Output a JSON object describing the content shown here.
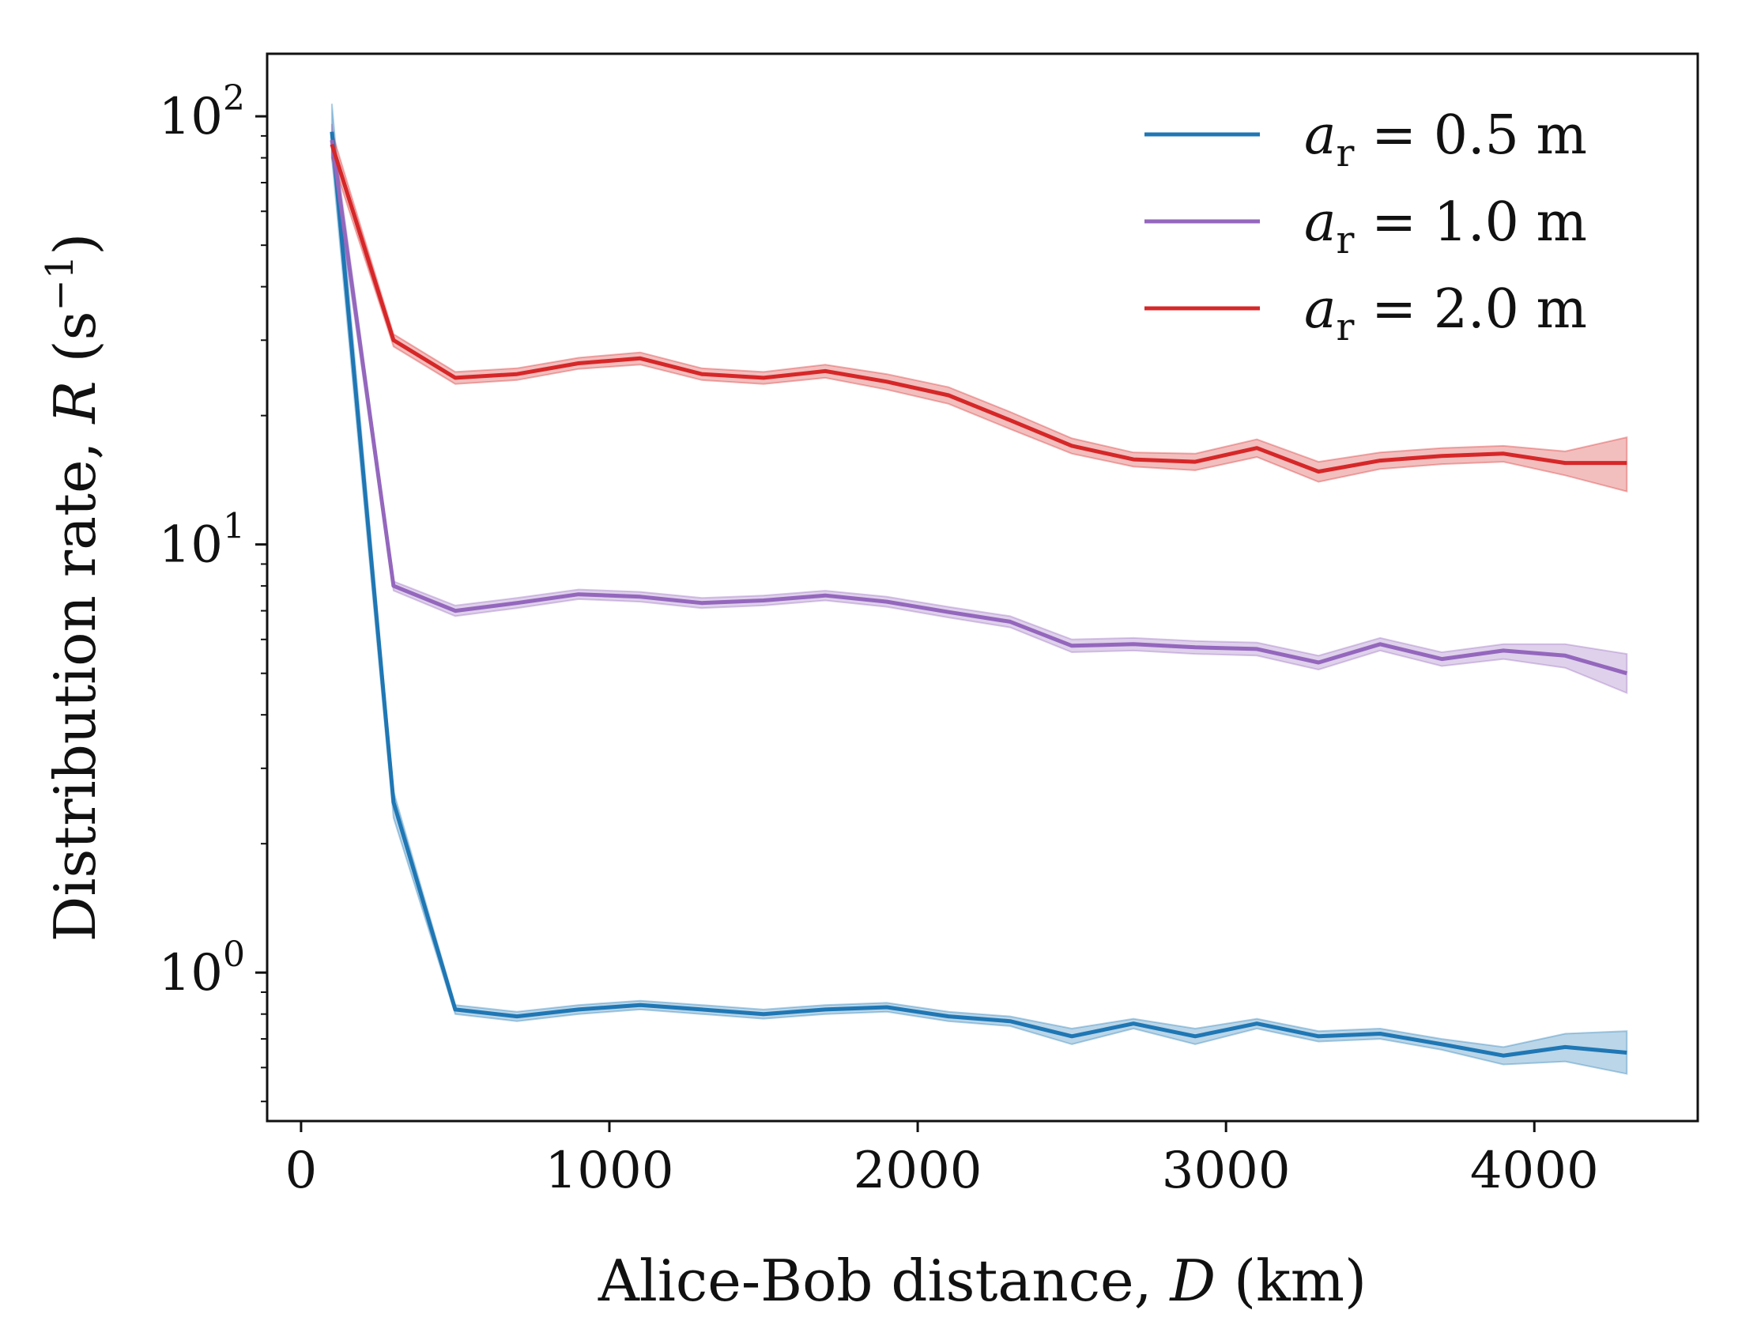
{
  "chart_data": {
    "type": "line",
    "title": "",
    "xlabel": {
      "prefix": "Alice-Bob distance, ",
      "var": "D",
      "suffix": " (km)"
    },
    "ylabel": {
      "prefix": "Distribution rate, ",
      "var": "R",
      "suffix_open": " (s",
      "suffix_sup": "−1",
      "suffix_close": ")"
    },
    "xscale": "linear",
    "yscale": "log",
    "xlim": [
      -110,
      4530
    ],
    "ylim": [
      0.45,
      140
    ],
    "xticks": [
      {
        "value": 0,
        "label": "0"
      },
      {
        "value": 1000,
        "label": "1000"
      },
      {
        "value": 2000,
        "label": "2000"
      },
      {
        "value": 3000,
        "label": "3000"
      },
      {
        "value": 4000,
        "label": "4000"
      }
    ],
    "yticks": [
      {
        "value": 1,
        "base": "10",
        "exp": "0"
      },
      {
        "value": 10,
        "base": "10",
        "exp": "1"
      },
      {
        "value": 100,
        "base": "10",
        "exp": "2"
      }
    ],
    "legend_position": "top-right",
    "x": [
      100,
      300,
      500,
      700,
      900,
      1100,
      1300,
      1500,
      1700,
      1900,
      2100,
      2300,
      2500,
      2700,
      2900,
      3100,
      3300,
      3500,
      3700,
      3900,
      4100,
      4300
    ],
    "series": [
      {
        "name_var": "a",
        "name_sub": "r",
        "name_value": " = 0.5 m",
        "color": "#1f77b4",
        "values": [
          92,
          2.5,
          0.82,
          0.79,
          0.82,
          0.84,
          0.82,
          0.8,
          0.82,
          0.83,
          0.79,
          0.77,
          0.71,
          0.76,
          0.71,
          0.76,
          0.71,
          0.72,
          0.68,
          0.64,
          0.67,
          0.65
        ],
        "lower": [
          80,
          2.3,
          0.8,
          0.77,
          0.8,
          0.82,
          0.8,
          0.78,
          0.8,
          0.81,
          0.77,
          0.75,
          0.68,
          0.74,
          0.68,
          0.74,
          0.69,
          0.7,
          0.66,
          0.61,
          0.62,
          0.58
        ],
        "upper": [
          107,
          2.65,
          0.84,
          0.81,
          0.84,
          0.86,
          0.84,
          0.82,
          0.84,
          0.85,
          0.81,
          0.79,
          0.74,
          0.78,
          0.74,
          0.78,
          0.73,
          0.74,
          0.7,
          0.67,
          0.72,
          0.73
        ]
      },
      {
        "name_var": "a",
        "name_sub": "r",
        "name_value": " = 1.0 m",
        "color": "#9467bd",
        "values": [
          88,
          8.0,
          7.0,
          7.3,
          7.65,
          7.55,
          7.3,
          7.4,
          7.6,
          7.35,
          6.95,
          6.6,
          5.8,
          5.85,
          5.75,
          5.7,
          5.3,
          5.85,
          5.4,
          5.65,
          5.5,
          5.0
        ],
        "lower": [
          80,
          7.8,
          6.8,
          7.1,
          7.45,
          7.35,
          7.1,
          7.2,
          7.4,
          7.15,
          6.75,
          6.4,
          5.6,
          5.65,
          5.55,
          5.5,
          5.1,
          5.65,
          5.2,
          5.4,
          5.15,
          4.5
        ],
        "upper": [
          96,
          8.2,
          7.2,
          7.5,
          7.85,
          7.75,
          7.5,
          7.6,
          7.8,
          7.55,
          7.15,
          6.8,
          6.0,
          6.05,
          5.95,
          5.9,
          5.5,
          6.05,
          5.6,
          5.85,
          5.85,
          5.55
        ]
      },
      {
        "name_var": "a",
        "name_sub": "r",
        "name_value": " = 2.0 m",
        "color": "#d62728",
        "values": [
          86,
          30,
          24.5,
          25,
          26.5,
          27.2,
          25,
          24.5,
          25.4,
          24,
          22.3,
          19.5,
          17,
          15.8,
          15.6,
          16.8,
          14.8,
          15.7,
          16.1,
          16.3,
          15.5,
          15.5
        ],
        "lower": [
          80,
          29,
          23.7,
          24.2,
          25.7,
          26.3,
          24.2,
          23.7,
          24.5,
          23,
          21.3,
          18.6,
          16.3,
          15.2,
          14.9,
          16.0,
          14.0,
          15.0,
          15.4,
          15.6,
          14.5,
          13.3
        ],
        "upper": [
          92,
          31,
          25.3,
          25.8,
          27.3,
          28.1,
          25.8,
          25.3,
          26.3,
          25,
          23.3,
          20.4,
          17.7,
          16.4,
          16.3,
          17.6,
          15.6,
          16.4,
          16.8,
          17.0,
          16.5,
          17.8
        ]
      }
    ]
  }
}
